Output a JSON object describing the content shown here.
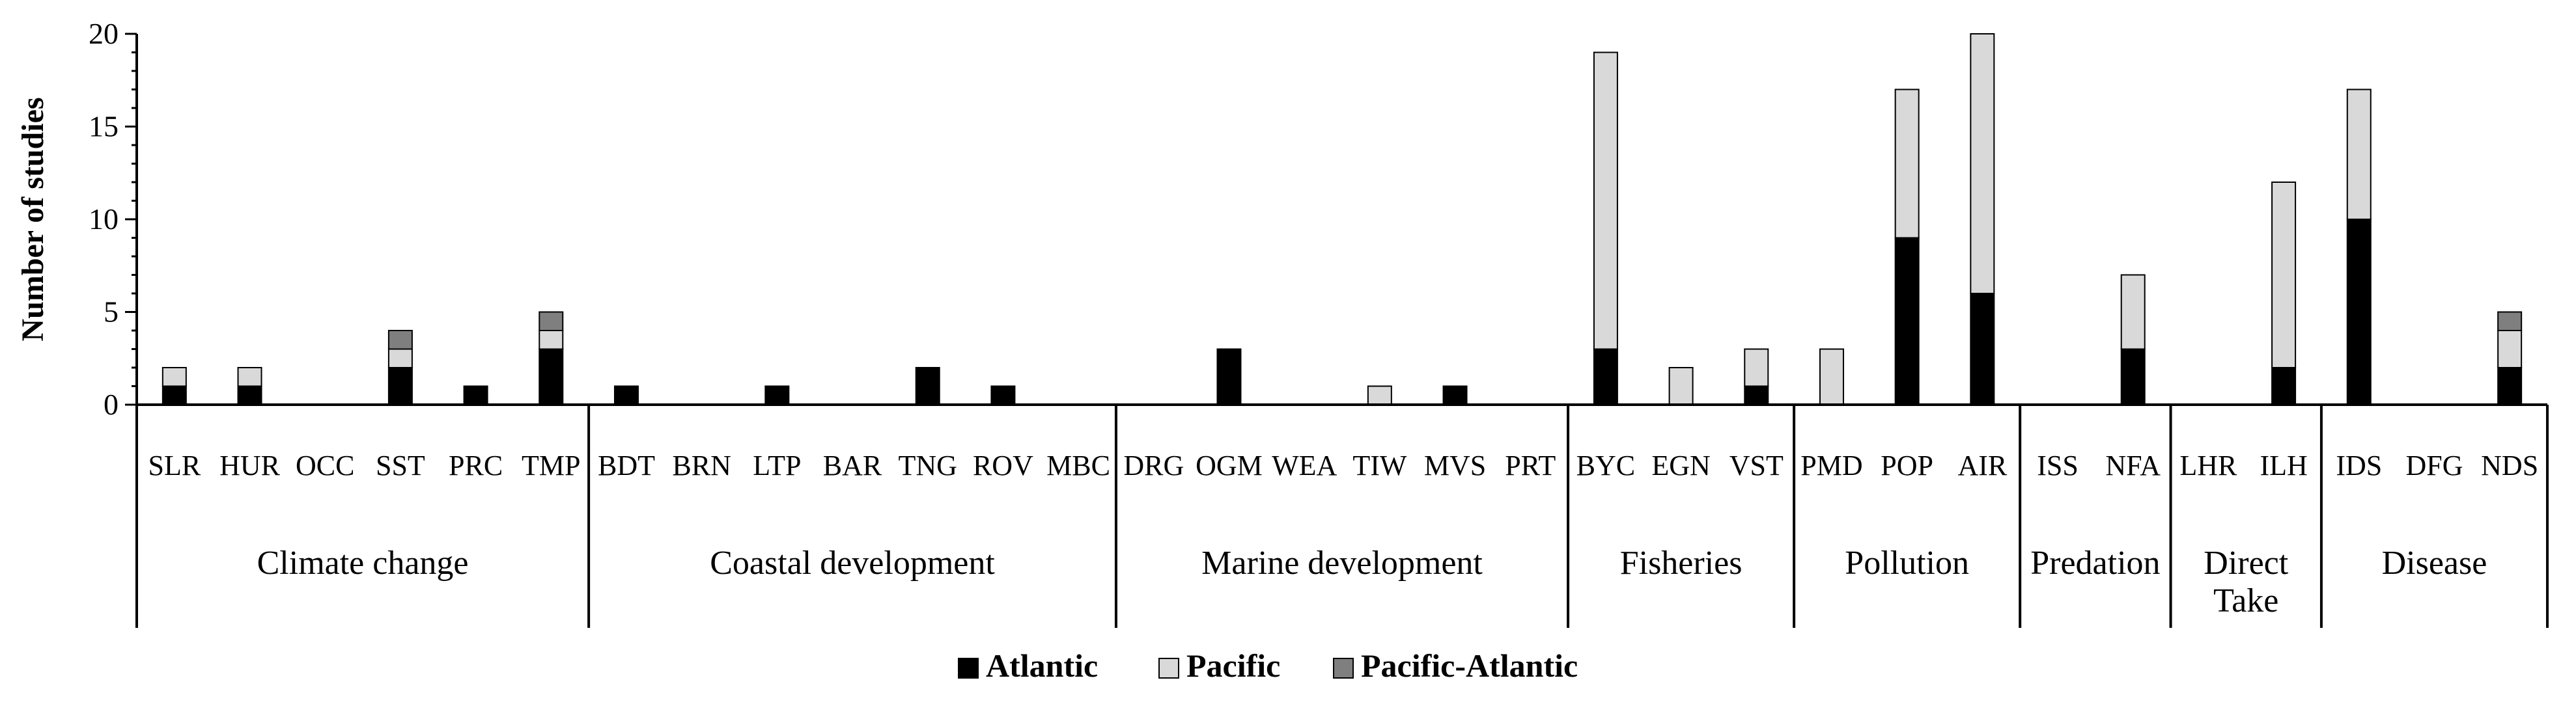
{
  "chart_data": {
    "type": "bar",
    "stacked": true,
    "ylabel": "Number of studies",
    "ylim": [
      0,
      20
    ],
    "yticks": [
      0,
      5,
      10,
      15,
      20
    ],
    "grid": false,
    "legend_position": "bottom",
    "categories": [
      "SLR",
      "HUR",
      "OCC",
      "SST",
      "PRC",
      "TMP",
      "BDT",
      "BRN",
      "LTP",
      "BAR",
      "TNG",
      "ROV",
      "MBC",
      "DRG",
      "OGM",
      "WEA",
      "TIW",
      "MVS",
      "PRT",
      "BYC",
      "EGN",
      "VST",
      "PMD",
      "POP",
      "AIR",
      "ISS",
      "NFA",
      "LHR",
      "ILH",
      "IDS",
      "DFG",
      "NDS"
    ],
    "groups": [
      {
        "name": "Climate change",
        "start": 0,
        "end": 5
      },
      {
        "name": "Coastal development",
        "start": 6,
        "end": 12
      },
      {
        "name": "Marine development",
        "start": 13,
        "end": 18
      },
      {
        "name": "Fisheries",
        "start": 19,
        "end": 21
      },
      {
        "name": "Pollution",
        "start": 22,
        "end": 24
      },
      {
        "name": "Predation",
        "start": 25,
        "end": 26
      },
      {
        "name": "Direct Take",
        "start": 27,
        "end": 28
      },
      {
        "name": "Disease",
        "start": 29,
        "end": 31
      }
    ],
    "series": [
      {
        "name": "Atlantic",
        "color": "#000000",
        "values": [
          1,
          1,
          0,
          2,
          1,
          3,
          1,
          0,
          1,
          0,
          2,
          1,
          0,
          0,
          3,
          0,
          0,
          1,
          0,
          3,
          0,
          1,
          0,
          9,
          6,
          0,
          3,
          0,
          2,
          10,
          0,
          2
        ]
      },
      {
        "name": "Pacific",
        "color": "#d9d9d9",
        "values": [
          1,
          1,
          0,
          1,
          0,
          1,
          0,
          0,
          0,
          0,
          0,
          0,
          0,
          0,
          0,
          0,
          1,
          0,
          0,
          16,
          2,
          2,
          3,
          8,
          14,
          0,
          4,
          0,
          10,
          7,
          0,
          2
        ]
      },
      {
        "name": "Pacific-Atlantic",
        "color": "#7f7f7f",
        "values": [
          0,
          0,
          0,
          1,
          0,
          1,
          0,
          0,
          0,
          0,
          0,
          0,
          0,
          0,
          0,
          0,
          0,
          0,
          0,
          0,
          0,
          0,
          0,
          0,
          0,
          0,
          0,
          0,
          0,
          0,
          0,
          1
        ]
      }
    ]
  }
}
